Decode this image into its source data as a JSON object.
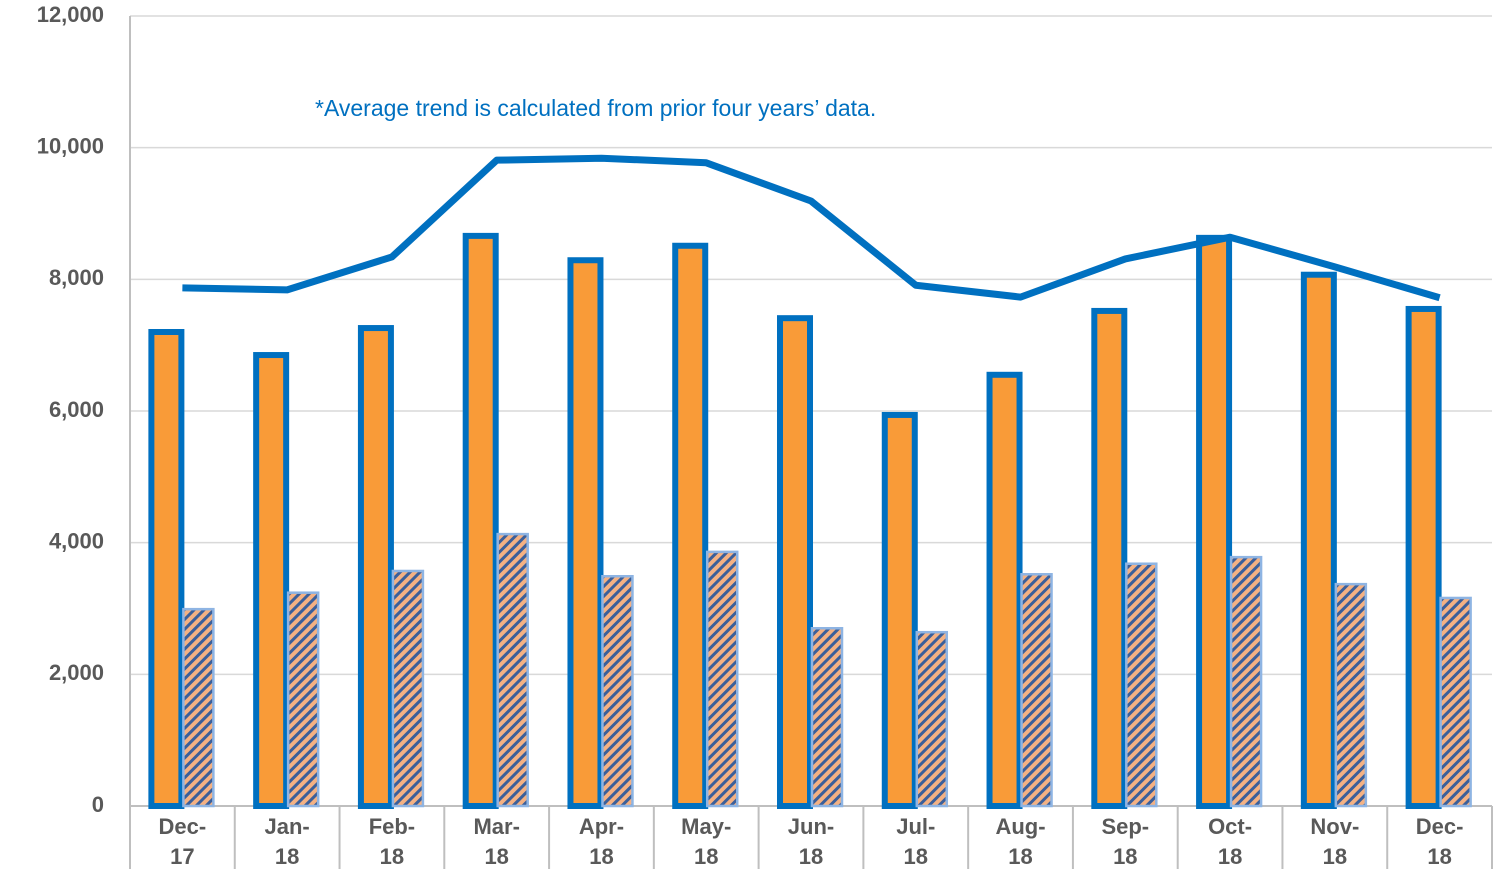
{
  "chart_data": {
    "type": "bar",
    "annotation": "*Average trend is calculated from prior four years’ data.",
    "categories": [
      "Dec-17",
      "Jan-18",
      "Feb-18",
      "Mar-18",
      "Apr-18",
      "May-18",
      "Jun-18",
      "Jul-18",
      "Aug-18",
      "Sep-18",
      "Oct-18",
      "Nov-18",
      "Dec-18"
    ],
    "series": [
      {
        "type": "bar",
        "color": "#f99b38",
        "edgecolor": "#0070c0",
        "values": [
          7200,
          6850,
          7260,
          8660,
          8290,
          8510,
          7410,
          5940,
          6550,
          7520,
          8630,
          8070,
          7550
        ]
      },
      {
        "type": "bar",
        "color": "#f4b183",
        "edgecolor": "#8eb4e3",
        "hatch": true,
        "values": [
          2990,
          3240,
          3570,
          4130,
          3490,
          3860,
          2700,
          2640,
          3520,
          3680,
          3780,
          3370,
          3160
        ]
      },
      {
        "type": "line",
        "color": "#0070c0",
        "values": [
          7870,
          7840,
          8340,
          9810,
          9840,
          9770,
          9190,
          7910,
          7730,
          8310,
          8640,
          8190,
          7720
        ]
      }
    ],
    "ylim": [
      0,
      12000
    ],
    "yticks": [
      0,
      {
        "value": 2000,
        "label": "2,000"
      },
      {
        "value": 4000,
        "label": "4,000"
      },
      {
        "value": 6000,
        "label": "6,000"
      },
      {
        "value": 8000,
        "label": "8,000"
      },
      {
        "value": 10000,
        "label": "10,000"
      },
      {
        "value": 12000,
        "label": "12,000"
      }
    ],
    "grid": true
  }
}
